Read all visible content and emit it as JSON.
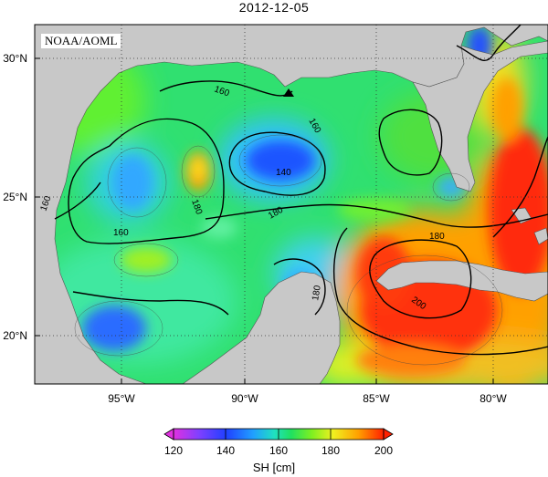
{
  "title": "2012-12-05",
  "credit": "NOAA/AOML",
  "lat_ticks": [
    "30°N",
    "25°N",
    "20°N"
  ],
  "lon_ticks": [
    "95°W",
    "90°W",
    "85°W",
    "80°W"
  ],
  "contour_labels": [
    "160",
    "160",
    "160",
    "160",
    "140",
    "180",
    "180",
    "180",
    "200",
    "180"
  ],
  "colorbar": {
    "ticks": [
      "120",
      "140",
      "160",
      "180",
      "200"
    ],
    "label": "SH [cm]",
    "colors": [
      "#e030e0",
      "#8040ff",
      "#2040ff",
      "#20a0ff",
      "#20e0c0",
      "#20e060",
      "#80f020",
      "#f0f020",
      "#ffa000",
      "#ff2000"
    ]
  },
  "colors": {
    "land": "#c8c8c8",
    "ocean_base": "#30e070",
    "high": "#ff2a10",
    "low": "#1a55ff"
  },
  "station_marker": "triangle"
}
